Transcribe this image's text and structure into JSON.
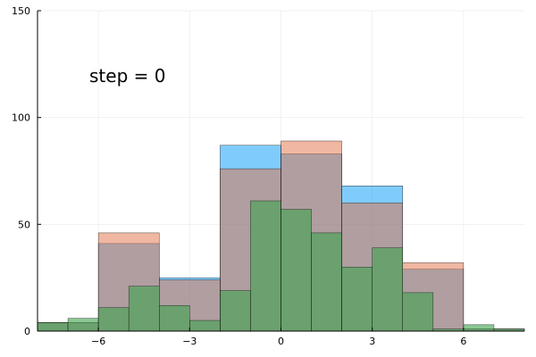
{
  "chart_data": {
    "type": "bar",
    "subtype": "overlaid-histogram",
    "title": "",
    "xlabel": "",
    "ylabel": "",
    "xlim": [
      -8,
      8
    ],
    "ylim": [
      0,
      150
    ],
    "x_ticks": [
      -6,
      -3,
      0,
      3,
      6
    ],
    "x_tick_labels": [
      "−6",
      "−3",
      "0",
      "3",
      "6"
    ],
    "y_ticks": [
      0,
      50,
      100,
      150
    ],
    "y_tick_labels": [
      "0",
      "50",
      "100",
      "150"
    ],
    "grid": true,
    "legend": "none",
    "annotation": "step = 0",
    "series": [
      {
        "color": "#009AF9",
        "opacity": 0.5,
        "bins": [
          [
            -8,
            -6,
            4
          ],
          [
            -6,
            -4,
            41
          ],
          [
            -4,
            -2,
            25
          ],
          [
            -2,
            0,
            87
          ],
          [
            0,
            2,
            83
          ],
          [
            2,
            4,
            68
          ],
          [
            4,
            6,
            29
          ],
          [
            6,
            8,
            1
          ]
        ]
      },
      {
        "color": "#E26F46",
        "opacity": 0.5,
        "bins": [
          [
            -8,
            -6,
            4
          ],
          [
            -6,
            -4,
            46
          ],
          [
            -4,
            -2,
            24
          ],
          [
            -2,
            0,
            76
          ],
          [
            0,
            2,
            89
          ],
          [
            2,
            4,
            60
          ],
          [
            4,
            6,
            32
          ],
          [
            6,
            8,
            1
          ]
        ]
      },
      {
        "color": "#3DA44D",
        "opacity": 0.6,
        "bins": [
          [
            -8,
            -7,
            4
          ],
          [
            -7,
            -6,
            6
          ],
          [
            -6,
            -5,
            11
          ],
          [
            -5,
            -4,
            21
          ],
          [
            -4,
            -3,
            12
          ],
          [
            -3,
            -2,
            5
          ],
          [
            -2,
            -1,
            19
          ],
          [
            -1,
            0,
            61
          ],
          [
            0,
            1,
            57
          ],
          [
            1,
            2,
            46
          ],
          [
            2,
            3,
            30
          ],
          [
            3,
            4,
            39
          ],
          [
            4,
            5,
            18
          ],
          [
            5,
            6,
            1
          ],
          [
            6,
            7,
            3
          ],
          [
            7,
            8,
            1
          ]
        ]
      }
    ]
  }
}
